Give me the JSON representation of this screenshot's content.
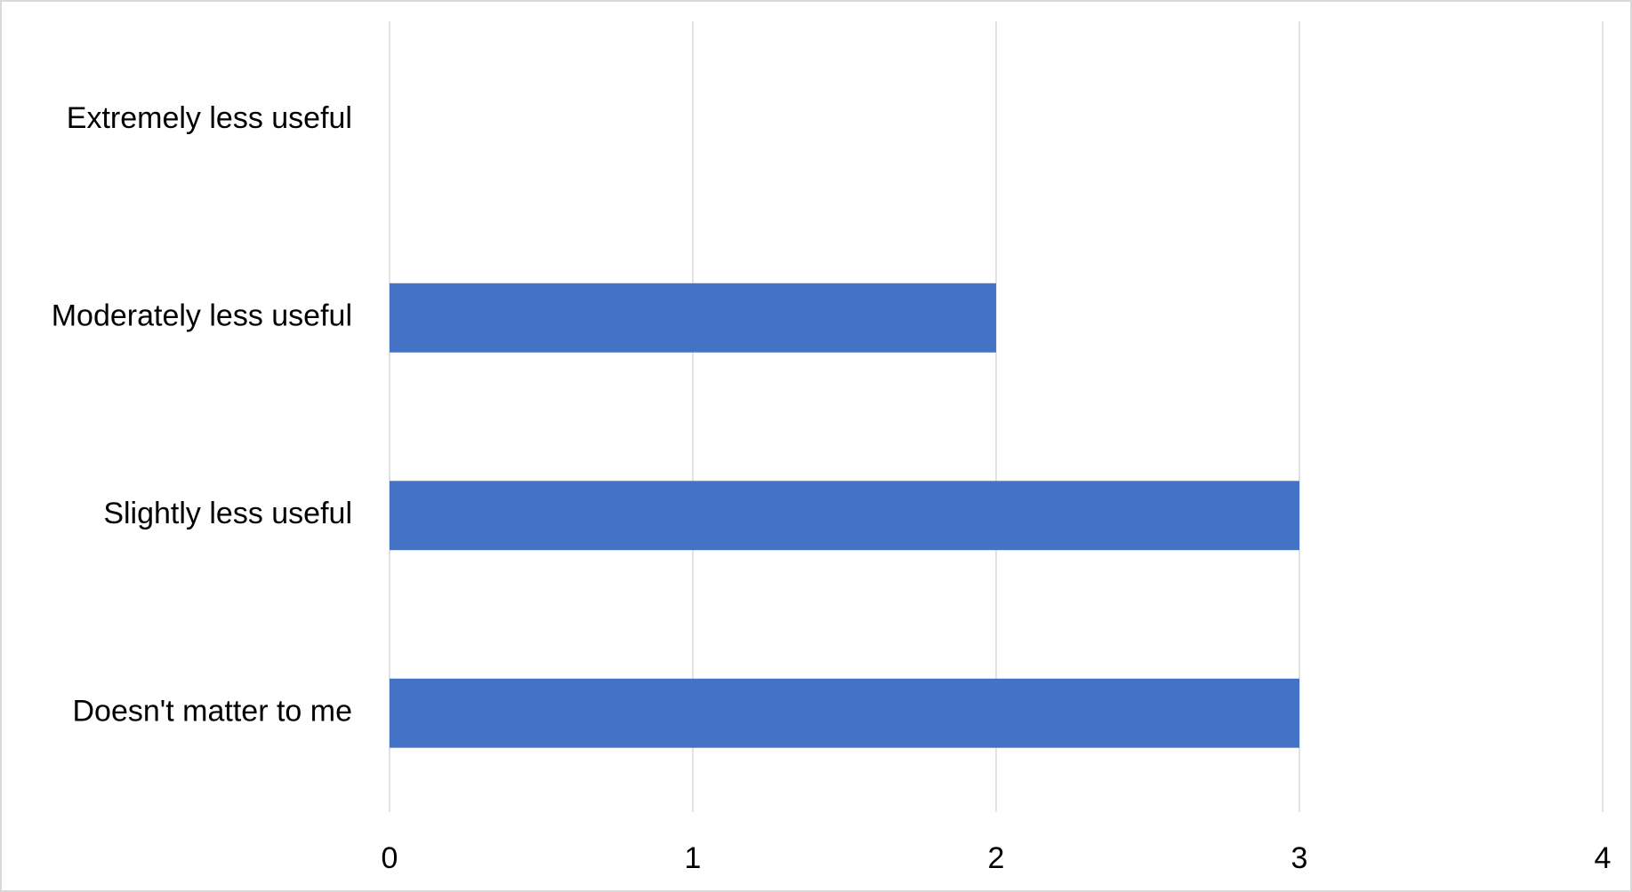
{
  "chart_data": {
    "type": "barh",
    "categories": [
      "Extremely less useful",
      "Moderately less useful",
      "Slightly less useful",
      "Doesn't matter to me"
    ],
    "values": [
      0,
      2,
      3,
      3
    ],
    "color": "#4472c4",
    "xlim": [
      0,
      4
    ],
    "xticks": [
      0,
      1,
      2,
      3,
      4
    ],
    "grid": true
  }
}
